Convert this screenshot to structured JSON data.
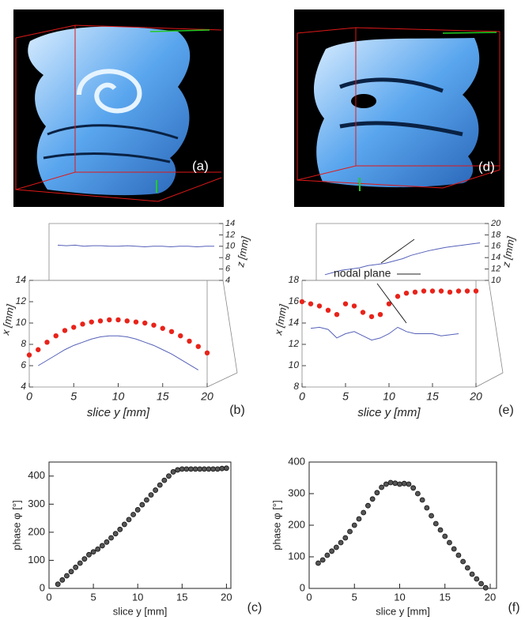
{
  "images": [
    {
      "label": "(a)"
    },
    {
      "label": "(d)"
    }
  ],
  "chart_data": [
    {
      "type": "line3d",
      "label": "(b)",
      "xlabel": "slice y [mm]",
      "ylabel": "x [mm]",
      "zlabel": "z [mm]",
      "xlim": [
        0,
        20
      ],
      "xticks": [
        0,
        5,
        10,
        15,
        20
      ],
      "ylim": [
        4,
        14
      ],
      "yticks": [
        4,
        6,
        8,
        10,
        12,
        14
      ],
      "zlim": [
        4,
        14
      ],
      "zticks": [
        4,
        6,
        8,
        10,
        12,
        14
      ],
      "x": [
        0,
        1,
        2,
        3,
        4,
        5,
        6,
        7,
        8,
        9,
        10,
        11,
        12,
        13,
        14,
        15,
        16,
        17,
        18,
        19,
        20
      ],
      "series": [
        {
          "color": "#e8231a",
          "marker": true,
          "values": [
            7.0,
            7.5,
            8.2,
            8.8,
            9.3,
            9.6,
            9.9,
            10.1,
            10.2,
            10.3,
            10.3,
            10.2,
            10.1,
            10.0,
            9.8,
            9.5,
            9.2,
            8.8,
            8.3,
            7.8,
            7.2
          ]
        },
        {
          "color": "#5560b8",
          "marker": false,
          "values": [
            null,
            6.0,
            6.5,
            7.0,
            7.5,
            7.9,
            8.2,
            8.5,
            8.7,
            8.8,
            8.8,
            8.7,
            8.5,
            8.2,
            7.9,
            7.5,
            7.1,
            6.6,
            6.1,
            5.6,
            null
          ]
        },
        {
          "color": "#5560b8",
          "marker": false,
          "axis": "z",
          "values": [
            null,
            10.2,
            10.1,
            10.2,
            10.0,
            10.1,
            10.1,
            10.0,
            10.0,
            10.1,
            10.0,
            9.9,
            10.0,
            10.0,
            9.9,
            10.0,
            10.0,
            9.9,
            10.0,
            10.0,
            null
          ]
        }
      ]
    },
    {
      "type": "line3d",
      "label": "(e)",
      "xlabel": "slice y [mm]",
      "ylabel": "x [mm]",
      "zlabel": "z [mm]",
      "annotation": "nodal plane",
      "xlim": [
        0,
        20
      ],
      "xticks": [
        0,
        5,
        10,
        15,
        20
      ],
      "ylim": [
        8,
        18
      ],
      "yticks": [
        8,
        10,
        12,
        14,
        16,
        18
      ],
      "zlim": [
        10,
        20
      ],
      "zticks": [
        10,
        12,
        14,
        16,
        18,
        20
      ],
      "x": [
        0,
        1,
        2,
        3,
        4,
        5,
        6,
        7,
        8,
        9,
        10,
        11,
        12,
        13,
        14,
        15,
        16,
        17,
        18,
        19,
        20
      ],
      "series": [
        {
          "color": "#e8231a",
          "marker": true,
          "values": [
            16.0,
            15.8,
            15.6,
            15.2,
            14.8,
            15.8,
            15.6,
            15.0,
            14.6,
            14.8,
            15.8,
            16.5,
            16.8,
            16.9,
            17.0,
            17.0,
            17.0,
            16.9,
            17.0,
            17.0,
            17.0
          ]
        },
        {
          "color": "#5560b8",
          "marker": false,
          "values": [
            null,
            13.5,
            13.6,
            13.4,
            12.6,
            13.0,
            13.2,
            12.8,
            12.4,
            12.6,
            13.0,
            13.6,
            13.2,
            13.0,
            13.0,
            13.0,
            12.8,
            12.9,
            13.0,
            null,
            null
          ]
        },
        {
          "color": "#5560b8",
          "marker": false,
          "axis": "z",
          "values": [
            null,
            11.0,
            11.4,
            11.8,
            12.0,
            12.2,
            12.6,
            12.8,
            13.0,
            13.4,
            13.8,
            14.4,
            14.8,
            15.2,
            15.5,
            15.8,
            16.0,
            16.2,
            16.4,
            16.6,
            null
          ]
        }
      ]
    },
    {
      "type": "scatter",
      "label": "(c)",
      "xlabel": "slice y [mm]",
      "ylabel": "phase φ [°]",
      "color": "#555555",
      "xlim": [
        0,
        20.5
      ],
      "xticks": [
        0,
        5,
        10,
        15,
        20
      ],
      "ylim": [
        0,
        450
      ],
      "yticks": [
        0,
        100,
        200,
        300,
        400
      ],
      "x": [
        1,
        1.5,
        2,
        2.5,
        3,
        3.5,
        4,
        4.5,
        5,
        5.5,
        6,
        6.5,
        7,
        7.5,
        8,
        8.5,
        9,
        9.5,
        10,
        10.5,
        11,
        11.5,
        12,
        12.5,
        13,
        13.5,
        14,
        14.5,
        15,
        15.5,
        16,
        16.5,
        17,
        17.5,
        18,
        18.5,
        19,
        19.5,
        20
      ],
      "values": [
        15,
        30,
        45,
        60,
        75,
        90,
        105,
        120,
        130,
        140,
        152,
        165,
        180,
        195,
        210,
        228,
        245,
        263,
        280,
        298,
        315,
        333,
        350,
        368,
        385,
        400,
        415,
        422,
        425,
        425,
        425,
        425,
        425,
        425,
        425,
        425,
        425,
        427,
        428
      ]
    },
    {
      "type": "scatter",
      "label": "(f)",
      "xlabel": "slice y [mm]",
      "ylabel": "phase φ [°]",
      "color": "#555555",
      "xlim": [
        0,
        20.7
      ],
      "xticks": [
        0,
        5,
        10,
        15,
        20
      ],
      "ylim": [
        0,
        400
      ],
      "yticks": [
        0,
        100,
        200,
        300,
        400
      ],
      "x": [
        1,
        1.5,
        2,
        2.5,
        3,
        3.5,
        4,
        4.5,
        5,
        5.5,
        6,
        6.5,
        7,
        7.5,
        8,
        8.5,
        9,
        9.5,
        10,
        10.5,
        11,
        11.5,
        12,
        12.5,
        13,
        13.5,
        14,
        14.5,
        15,
        15.5,
        16,
        16.5,
        17,
        17.5,
        18,
        18.5,
        19,
        19.5
      ],
      "values": [
        80,
        90,
        105,
        118,
        130,
        145,
        160,
        180,
        200,
        220,
        240,
        262,
        283,
        303,
        320,
        330,
        335,
        333,
        330,
        332,
        330,
        318,
        300,
        280,
        255,
        230,
        205,
        185,
        165,
        145,
        125,
        105,
        85,
        65,
        45,
        30,
        15,
        2
      ]
    }
  ]
}
